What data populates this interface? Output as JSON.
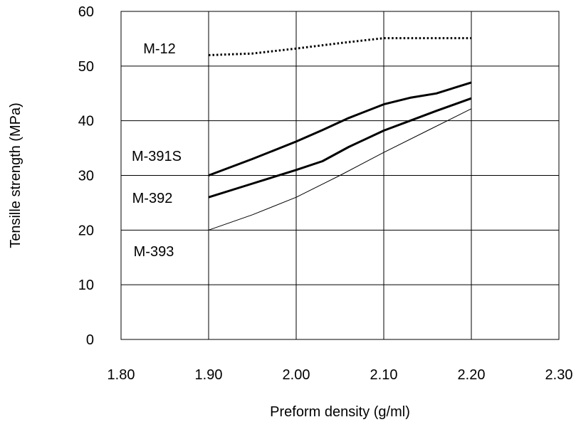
{
  "chart_data": {
    "type": "line",
    "title": "",
    "xlabel": "Preform density (g/ml)",
    "ylabel": "Tensille strength (MPa)",
    "xlim": [
      1.8,
      2.3
    ],
    "ylim": [
      0,
      60
    ],
    "xticks": [
      1.8,
      1.9,
      2.0,
      2.1,
      2.2,
      2.3
    ],
    "xtick_labels": [
      "1.80",
      "1.90",
      "2.00",
      "2.10",
      "2.20",
      "2.30"
    ],
    "yticks": [
      0,
      10,
      20,
      30,
      40,
      50,
      60
    ],
    "ytick_labels": [
      "0",
      "10",
      "20",
      "30",
      "40",
      "50",
      "60"
    ],
    "grid": true,
    "legend": "inline labels at left",
    "series": [
      {
        "name": "M-12",
        "style": "dotted",
        "x": [
          1.9,
          1.95,
          2.0,
          2.05,
          2.1,
          2.15,
          2.2
        ],
        "y": [
          52,
          52.3,
          53.2,
          54.2,
          55.1,
          55.1,
          55.1
        ]
      },
      {
        "name": "M-391S",
        "style": "bold",
        "x": [
          1.9,
          1.95,
          2.0,
          2.03,
          2.06,
          2.1,
          2.13,
          2.16,
          2.2
        ],
        "y": [
          30,
          33,
          36.2,
          38.3,
          40.5,
          43,
          44.2,
          45,
          47
        ]
      },
      {
        "name": "M-392",
        "style": "bold",
        "x": [
          1.9,
          1.95,
          2.0,
          2.03,
          2.06,
          2.1,
          2.13,
          2.16,
          2.2
        ],
        "y": [
          26,
          28.5,
          31,
          32.6,
          35.2,
          38.2,
          40,
          41.8,
          44.1
        ]
      },
      {
        "name": "M-393",
        "style": "thin",
        "x": [
          1.9,
          1.95,
          2.0,
          2.05,
          2.1,
          2.15,
          2.2
        ],
        "y": [
          20,
          22.8,
          26,
          30,
          34.2,
          38.2,
          42.2
        ]
      }
    ],
    "series_labels": [
      "M-12",
      "M-391S",
      "M-392",
      "M-393"
    ]
  }
}
